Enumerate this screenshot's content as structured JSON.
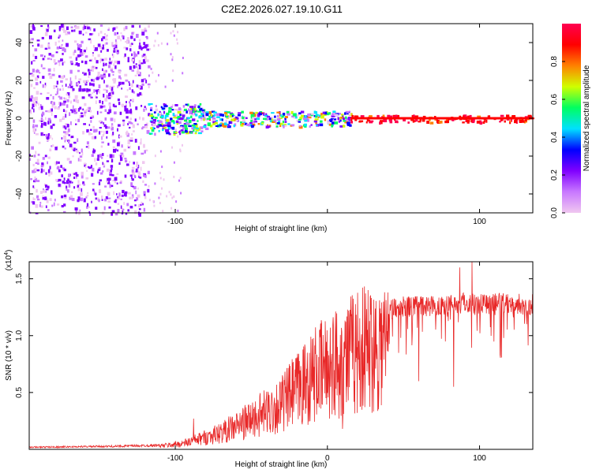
{
  "title": "C2E2.2026.027.19.10.G11",
  "colors": {
    "snr_line": "#e82828",
    "spec_background": "#ffffff",
    "spectrogram_scale": [
      "#f0c8f0",
      "#c878ff",
      "#8000ff",
      "#0000ff",
      "#00e0ff",
      "#00ff60",
      "#d0ff00",
      "#ff8000",
      "#ff0000",
      "#ff0050"
    ]
  },
  "chart_data": [
    {
      "type": "heatmap",
      "title": "",
      "xlabel": "Height of straight line (km)",
      "ylabel": "Frequency (Hz)",
      "xlim": [
        -196,
        135
      ],
      "ylim": [
        -50,
        50
      ],
      "xticks": [
        -100,
        0,
        100
      ],
      "xtick_labels": [
        "-100",
        "",
        "100"
      ],
      "yticks": [
        -40,
        -20,
        0,
        20,
        40
      ],
      "ytick_labels": [
        "-40",
        "-20",
        "0",
        "20",
        "40"
      ],
      "colorbar": {
        "label": "Normalized spectral amplitude",
        "range": [
          0.0,
          1.0
        ],
        "ticks": [
          0.0,
          0.2,
          0.4,
          0.6,
          0.8
        ],
        "tick_labels": [
          "0.0",
          "0.2",
          "0.4",
          "0.6",
          "0.8"
        ]
      },
      "regions": [
        {
          "name": "noise",
          "x_range": [
            -196,
            -118
          ],
          "freq_range": [
            -50,
            50
          ],
          "amplitude": 0.1
        },
        {
          "name": "sparse-noise",
          "x_range": [
            -118,
            -95
          ],
          "freq_range": [
            -50,
            50
          ],
          "amplitude": 0.05
        },
        {
          "name": "signal-onset",
          "x_range": [
            -118,
            -80
          ],
          "center_freq": 0,
          "halfwidth_hz": 8,
          "amplitude": 0.3
        },
        {
          "name": "signal-settling",
          "x_range": [
            -80,
            15
          ],
          "center_freq": 0,
          "halfwidth_hz": 4,
          "amplitude": 0.45
        },
        {
          "name": "signal-steady",
          "x_range": [
            15,
            135
          ],
          "center_freq": 0,
          "halfwidth_hz": 2,
          "amplitude": 1.0
        }
      ]
    },
    {
      "type": "line",
      "title": "",
      "xlabel": "Height of straight line (km)",
      "ylabel": "SNR (10 * v/v)",
      "yscale_label": "(x10",
      "yscale_exponent": "4",
      "yscale_suffix": ")",
      "xlim": [
        -196,
        135
      ],
      "ylim": [
        0,
        1.65
      ],
      "xticks": [
        -100,
        0,
        100
      ],
      "xtick_labels": [
        "-100",
        "0",
        "100"
      ],
      "yticks": [
        0.5,
        1.0,
        1.5
      ],
      "ytick_labels": [
        "0.5",
        "1.0",
        "1.5"
      ],
      "envelope": {
        "x": [
          -196,
          -140,
          -110,
          -95,
          -85,
          -70,
          -55,
          -40,
          -30,
          -20,
          -10,
          0,
          10,
          20,
          35,
          50,
          70,
          90,
          110,
          135
        ],
        "y": [
          0.02,
          0.03,
          0.04,
          0.07,
          0.12,
          0.2,
          0.32,
          0.45,
          0.55,
          0.72,
          0.88,
          1.0,
          1.1,
          1.2,
          1.28,
          1.32,
          1.33,
          1.36,
          1.35,
          1.34
        ]
      },
      "spikes": [
        {
          "x": -88,
          "y": 0.27
        },
        {
          "x": 95,
          "y": 1.65
        },
        {
          "x": 87,
          "y": 1.6
        },
        {
          "x": 10,
          "y": 0.18
        },
        {
          "x": 60,
          "y": 0.6
        },
        {
          "x": 83,
          "y": 0.55
        }
      ]
    }
  ]
}
